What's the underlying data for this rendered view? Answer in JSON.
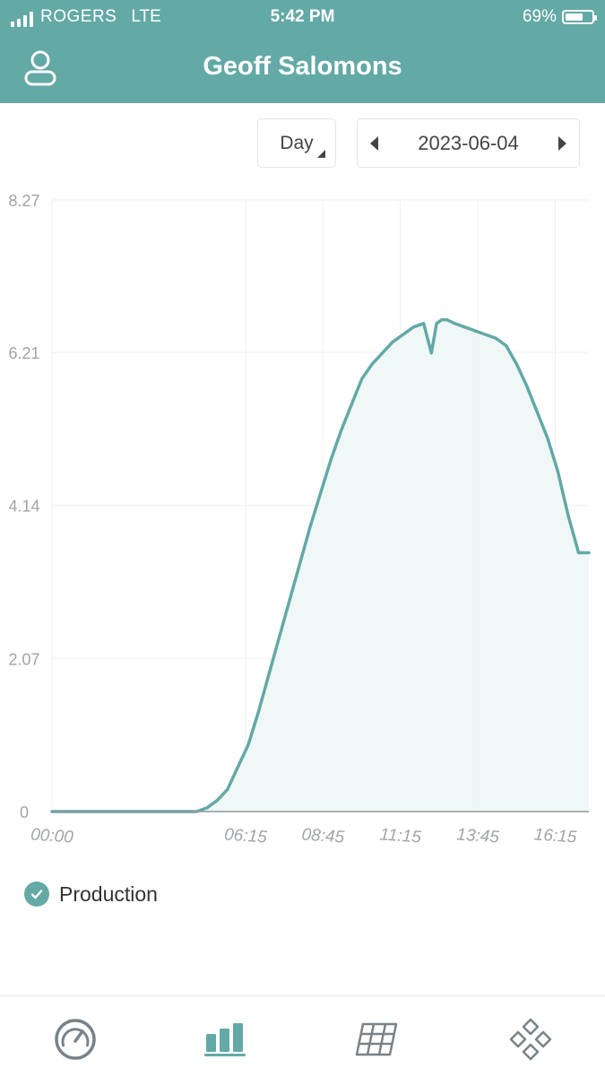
{
  "status_bar": {
    "carrier": "ROGERS",
    "network": "LTE",
    "time": "5:42 PM",
    "battery_percent": "69%",
    "battery_level": 0.69
  },
  "header": {
    "title": "Geoff Salomons",
    "user_icon": "user-icon"
  },
  "controls": {
    "period": "Day",
    "date": "2023-06-04"
  },
  "chart_data": {
    "type": "area",
    "title": "",
    "xlabel": "",
    "ylabel": "",
    "ylim": [
      0,
      8.27
    ],
    "y_ticks": [
      "0",
      "2.07",
      "4.14",
      "6.21",
      "8.27"
    ],
    "x_ticks": [
      "00:00",
      "06:15",
      "08:45",
      "11:15",
      "13:45",
      "16:15"
    ],
    "grid": true,
    "legend_placement": "bottom-left",
    "series": [
      {
        "name": "Production",
        "color": "#63a9a6",
        "x": [
          "00:00",
          "01:00",
          "02:00",
          "03:00",
          "04:00",
          "04:40",
          "05:00",
          "05:20",
          "05:40",
          "06:00",
          "06:20",
          "06:40",
          "07:00",
          "07:20",
          "07:40",
          "08:00",
          "08:20",
          "08:40",
          "09:00",
          "09:20",
          "09:40",
          "10:00",
          "10:20",
          "10:40",
          "11:00",
          "11:20",
          "11:40",
          "12:00",
          "12:15",
          "12:25",
          "12:35",
          "12:45",
          "13:00",
          "13:20",
          "13:40",
          "14:00",
          "14:20",
          "14:40",
          "15:00",
          "15:20",
          "15:40",
          "16:00",
          "16:20",
          "16:40",
          "17:00",
          "17:20"
        ],
        "values": [
          0,
          0,
          0,
          0,
          0,
          0,
          0.05,
          0.15,
          0.3,
          0.6,
          0.9,
          1.35,
          1.85,
          2.35,
          2.85,
          3.35,
          3.85,
          4.3,
          4.75,
          5.15,
          5.5,
          5.85,
          6.05,
          6.2,
          6.35,
          6.45,
          6.55,
          6.6,
          6.2,
          6.6,
          6.65,
          6.65,
          6.6,
          6.55,
          6.5,
          6.45,
          6.4,
          6.3,
          6.05,
          5.75,
          5.4,
          5.05,
          4.6,
          4.0,
          3.5,
          3.5
        ]
      }
    ]
  },
  "legend": {
    "label": "Production",
    "icon": "check-circle-icon"
  },
  "tabbar": {
    "items": [
      {
        "icon": "gauge-icon"
      },
      {
        "icon": "bar-chart-icon"
      },
      {
        "icon": "solar-panel-icon"
      },
      {
        "icon": "diamond-grid-icon"
      }
    ]
  }
}
